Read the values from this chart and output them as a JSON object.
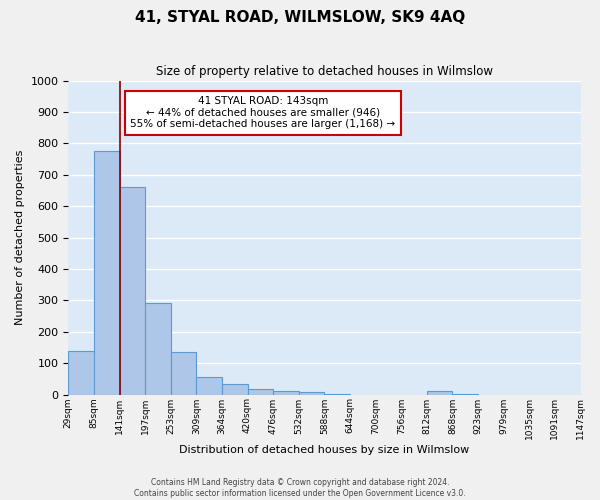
{
  "title": "41, STYAL ROAD, WILMSLOW, SK9 4AQ",
  "subtitle": "Size of property relative to detached houses in Wilmslow",
  "xlabel": "Distribution of detached houses by size in Wilmslow",
  "ylabel": "Number of detached properties",
  "bar_values": [
    140,
    775,
    660,
    290,
    135,
    55,
    32,
    18,
    10,
    8,
    3,
    0,
    0,
    0,
    10,
    3,
    0,
    0,
    0,
    0
  ],
  "bin_labels": [
    "29sqm",
    "85sqm",
    "141sqm",
    "197sqm",
    "253sqm",
    "309sqm",
    "364sqm",
    "420sqm",
    "476sqm",
    "532sqm",
    "588sqm",
    "644sqm",
    "700sqm",
    "756sqm",
    "812sqm",
    "868sqm",
    "923sqm",
    "979sqm",
    "1035sqm",
    "1091sqm",
    "1147sqm"
  ],
  "bar_color": "#aec6e8",
  "bar_edge_color": "#5b9bd5",
  "background_color": "#dce9f7",
  "grid_color": "#ffffff",
  "vline_x": 2,
  "vline_color": "#8b0000",
  "ylim": [
    0,
    1000
  ],
  "yticks": [
    0,
    100,
    200,
    300,
    400,
    500,
    600,
    700,
    800,
    900,
    1000
  ],
  "annotation_title": "41 STYAL ROAD: 143sqm",
  "annotation_line1": "← 44% of detached houses are smaller (946)",
  "annotation_line2": "55% of semi-detached houses are larger (1,168) →",
  "footer_line1": "Contains HM Land Registry data © Crown copyright and database right 2024.",
  "footer_line2": "Contains public sector information licensed under the Open Government Licence v3.0."
}
